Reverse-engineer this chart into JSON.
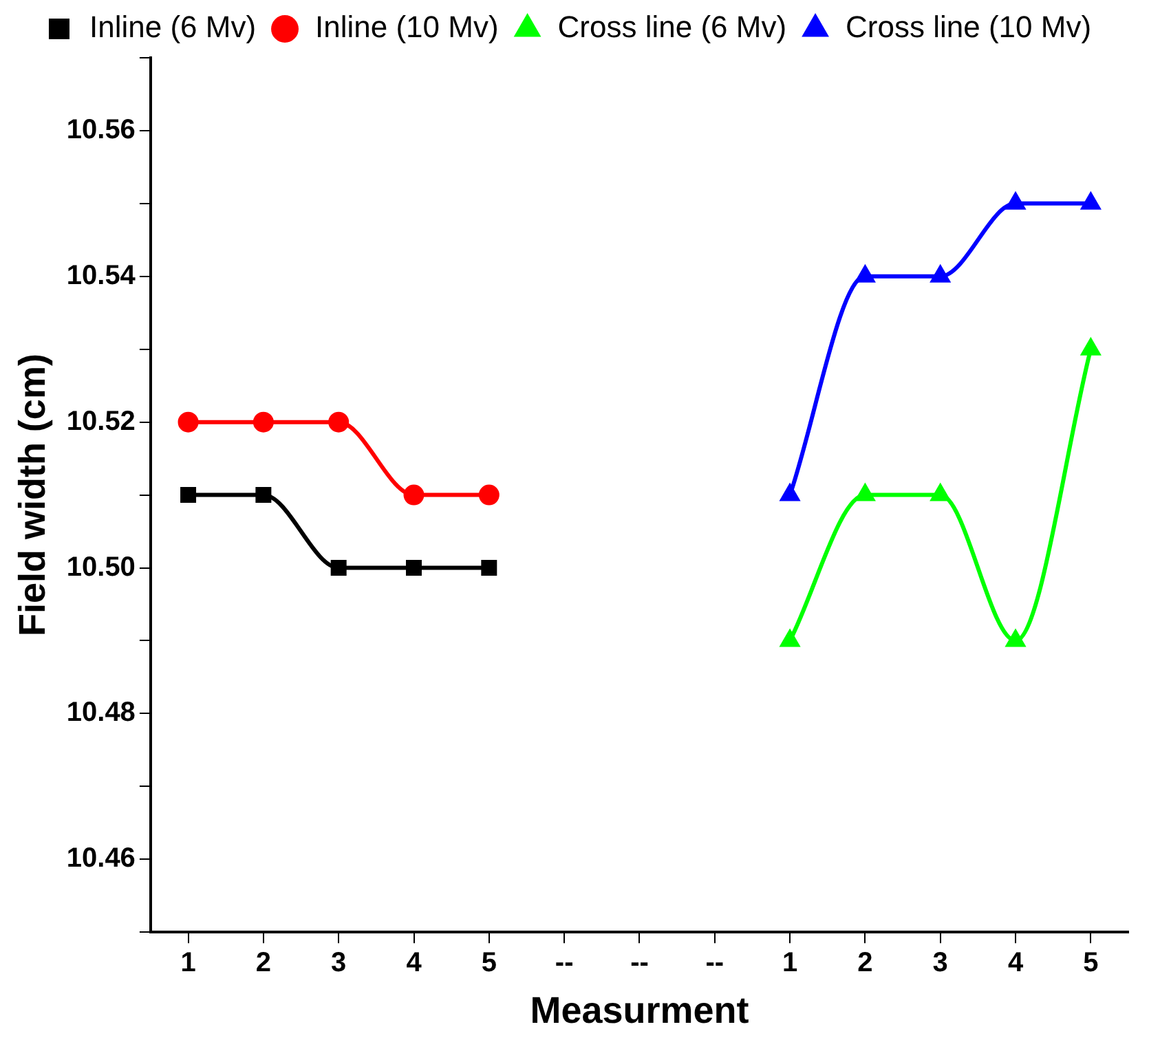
{
  "chart_data": {
    "type": "line",
    "xlabel": "Measurment",
    "ylabel": "Field width (cm)",
    "categories": [
      "1",
      "2",
      "3",
      "4",
      "5",
      "--",
      "--",
      "--",
      "1",
      "2",
      "3",
      "4",
      "5"
    ],
    "series": [
      {
        "name": "Inline (6 Mv)",
        "color": "#000000",
        "marker": "square",
        "values": [
          10.51,
          10.51,
          10.5,
          10.5,
          10.5,
          null,
          null,
          null,
          null,
          null,
          null,
          null,
          null
        ]
      },
      {
        "name": "Inline (10 Mv)",
        "color": "#ff0000",
        "marker": "circle",
        "values": [
          10.52,
          10.52,
          10.52,
          10.51,
          10.51,
          null,
          null,
          null,
          null,
          null,
          null,
          null,
          null
        ]
      },
      {
        "name": "Cross line (6 Mv)",
        "color": "#00ff00",
        "marker": "triangle",
        "values": [
          null,
          null,
          null,
          null,
          null,
          null,
          null,
          null,
          10.49,
          10.51,
          10.51,
          10.49,
          10.53
        ]
      },
      {
        "name": "Cross line (10 Mv)",
        "color": "#0000ff",
        "marker": "triangle",
        "values": [
          null,
          null,
          null,
          null,
          null,
          null,
          null,
          null,
          10.51,
          10.54,
          10.54,
          10.55,
          10.55
        ]
      }
    ],
    "ylim": [
      10.45,
      10.57
    ],
    "yticks": [
      {
        "value": 10.45,
        "label": null
      },
      {
        "value": 10.46,
        "label": "10.46"
      },
      {
        "value": 10.47,
        "label": null
      },
      {
        "value": 10.48,
        "label": "10.48"
      },
      {
        "value": 10.49,
        "label": null
      },
      {
        "value": 10.5,
        "label": "10.50"
      },
      {
        "value": 10.51,
        "label": null
      },
      {
        "value": 10.52,
        "label": "10.52"
      },
      {
        "value": 10.53,
        "label": null
      },
      {
        "value": 10.54,
        "label": "10.54"
      },
      {
        "value": 10.55,
        "label": null
      },
      {
        "value": 10.56,
        "label": "10.56"
      },
      {
        "value": 10.57,
        "label": null
      }
    ],
    "grid": false,
    "legend": "top",
    "line_style": "solid"
  }
}
